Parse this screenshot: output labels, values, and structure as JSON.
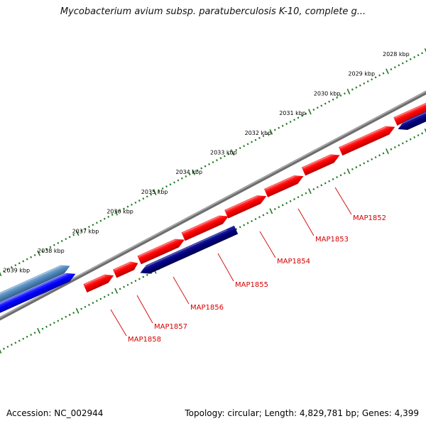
{
  "title": "Mycobacterium avium subsp. paratuberculosis K-10, complete g...",
  "footer": {
    "accession": "Accession: NC_002944",
    "topology": "Topology: circular; Length: 4,829,781 bp; Genes: 4,399"
  },
  "colors": {
    "forward_gene": "#ff0000",
    "reverse_gene_dark": "#000080",
    "reverse_gene_blue": "#0000ff",
    "steel_gene": "#4f86b8",
    "backbone": "#777777",
    "ticks": "#207a20",
    "label_text": "#d40000"
  },
  "kbp_ticks": [
    "2028 kbp",
    "2029 kbp",
    "2030 kbp",
    "2031 kbp",
    "2032 kbp",
    "2033 kbp",
    "2034 kbp",
    "2035 kbp",
    "2036 kbp",
    "2037 kbp",
    "2038 kbp",
    "2039 kbp"
  ],
  "gene_labels": [
    "MAP1852",
    "MAP1853",
    "MAP1854",
    "MAP1855",
    "MAP1856",
    "MAP1857",
    "MAP1858"
  ]
}
